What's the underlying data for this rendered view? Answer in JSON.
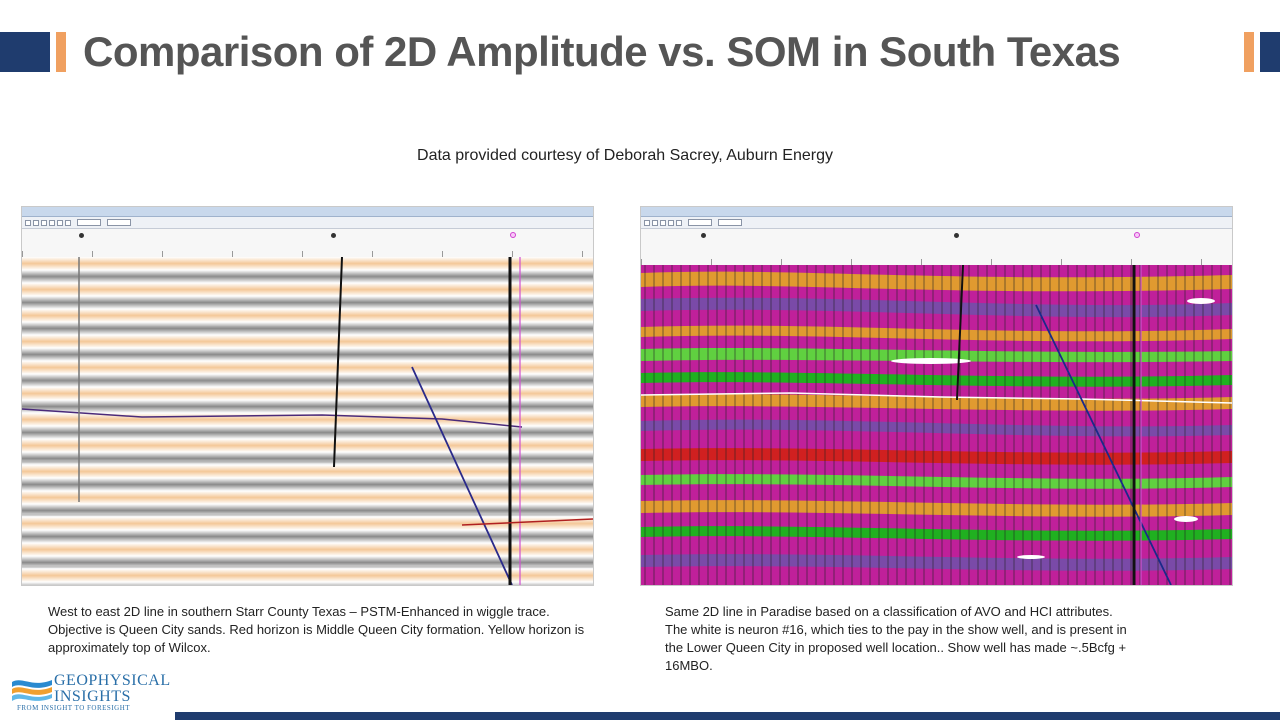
{
  "slide": {
    "title": "Comparison of 2D Amplitude vs. SOM in South Texas",
    "credit": "Data provided courtesy of Deborah Sacrey, Auburn Energy",
    "accent_colors": {
      "navy": "#1f3c6e",
      "orange": "#f0a060"
    }
  },
  "left_panel": {
    "caption": "West to east 2D line in southern Starr County Texas – PSTM-Enhanced in wiggle trace. Objective is Queen City sands.  Red horizon is Middle Queen City formation.  Yellow horizon is approximately top of Wilcox.",
    "image_description_icon": "seismic-wiggle-trace"
  },
  "right_panel": {
    "caption_lines": [
      "Same 2D line in Paradise based on a classification of AVO and HCI attributes.",
      "The white is neuron #16, which ties to the pay in the show well, and is present in",
      "the Lower Queen City in proposed well location.. Show well has made ~.5Bcfg +",
      "16MBO."
    ],
    "image_description_icon": "som-classification-seismic"
  },
  "logo": {
    "line1": "GEOPHYSICAL",
    "line2": "INSIGHTS",
    "tagline": "FROM INSIGHT TO FORESIGHT",
    "icon": "wave-logo-icon"
  }
}
